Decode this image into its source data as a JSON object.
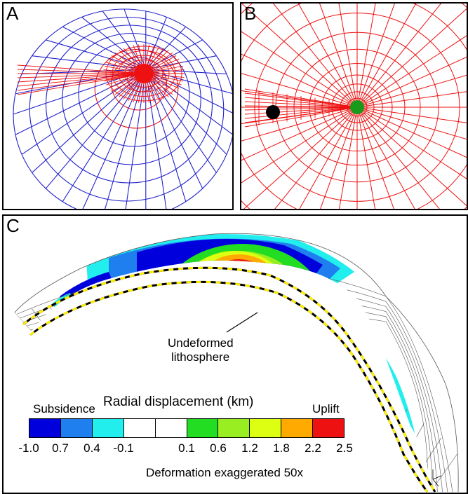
{
  "panels": {
    "a": {
      "label": "A",
      "outer_color": "#2222cc",
      "inner_color": "#ee1111"
    },
    "b": {
      "label": "B",
      "mesh_color": "#ee1111",
      "marker_colors": [
        "#000000",
        "#1a9a1a"
      ]
    },
    "c": {
      "label": "C"
    }
  },
  "legend": {
    "title": "Radial displacement (km)",
    "left_label": "Subsidence",
    "right_label": "Uplift",
    "annotation": "Undeformed lithosphere",
    "annotation_lines": [
      "Undeformed",
      "lithosphere"
    ],
    "footer": "Deformation exaggerated 50x",
    "ticks": [
      "-1.0",
      "0.7",
      "0.4",
      "-0.1",
      "0.1",
      "0.6",
      "1.2",
      "1.8",
      "2.2",
      "2.5"
    ],
    "colors": [
      "#0000dd",
      "#1f7fef",
      "#22eeee",
      "#ffffff",
      "#ffffff",
      "#22dd22",
      "#99ee22",
      "#ddff11",
      "#ffaa00",
      "#ee1111"
    ]
  }
}
